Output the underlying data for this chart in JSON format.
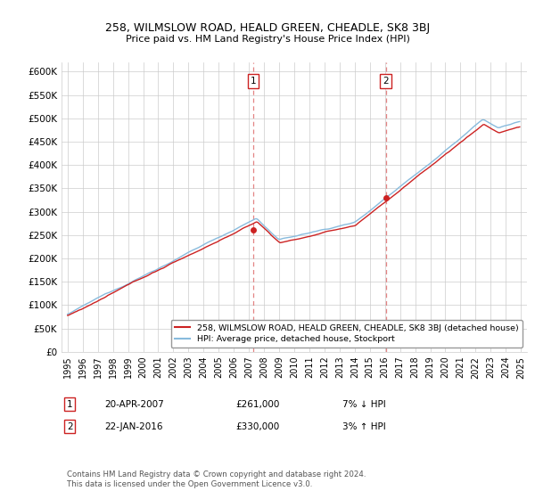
{
  "title": "258, WILMSLOW ROAD, HEALD GREEN, CHEADLE, SK8 3BJ",
  "subtitle": "Price paid vs. HM Land Registry's House Price Index (HPI)",
  "ylabel_ticks": [
    "£0",
    "£50K",
    "£100K",
    "£150K",
    "£200K",
    "£250K",
    "£300K",
    "£350K",
    "£400K",
    "£450K",
    "£500K",
    "£550K",
    "£600K"
  ],
  "ytick_values": [
    0,
    50000,
    100000,
    150000,
    200000,
    250000,
    300000,
    350000,
    400000,
    450000,
    500000,
    550000,
    600000
  ],
  "ylim": [
    0,
    620000
  ],
  "legend_line1": "258, WILMSLOW ROAD, HEALD GREEN, CHEADLE, SK8 3BJ (detached house)",
  "legend_line2": "HPI: Average price, detached house, Stockport",
  "annotation1_date": "20-APR-2007",
  "annotation1_price": "£261,000",
  "annotation1_hpi": "7% ↓ HPI",
  "annotation2_date": "22-JAN-2016",
  "annotation2_price": "£330,000",
  "annotation2_hpi": "3% ↑ HPI",
  "copyright": "Contains HM Land Registry data © Crown copyright and database right 2024.\nThis data is licensed under the Open Government Licence v3.0.",
  "hpi_color": "#88bbdd",
  "price_color": "#cc2222",
  "vline_color": "#dd6666",
  "box_color": "#cc2222",
  "background_color": "#ffffff",
  "grid_color": "#cccccc",
  "sale1_year": 2007.3,
  "sale1_price": 261000,
  "sale2_year": 2016.05,
  "sale2_price": 330000
}
